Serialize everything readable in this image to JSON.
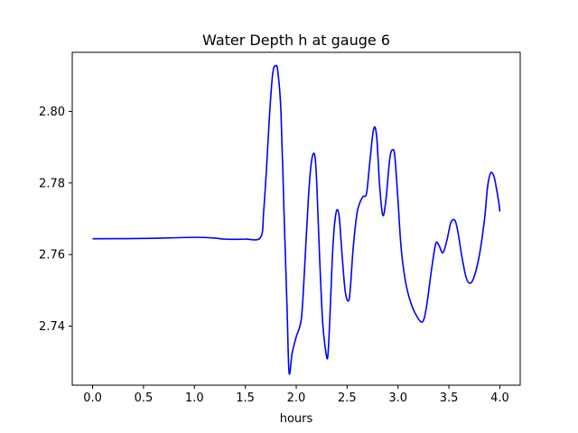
{
  "chart_data": {
    "type": "line",
    "title": "Water Depth h at gauge 6",
    "xlabel": "hours",
    "ylabel": "",
    "xlim": [
      -0.2,
      4.2
    ],
    "ylim": [
      2.7235,
      2.8165
    ],
    "xticks": [
      0.0,
      0.5,
      1.0,
      1.5,
      2.0,
      2.5,
      3.0,
      3.5,
      4.0
    ],
    "xtick_labels": [
      "0.0",
      "0.5",
      "1.0",
      "1.5",
      "2.0",
      "2.5",
      "3.0",
      "3.5",
      "4.0"
    ],
    "yticks": [
      2.74,
      2.76,
      2.78,
      2.8
    ],
    "ytick_labels": [
      "2.74",
      "2.76",
      "2.78",
      "2.80"
    ],
    "grid": false,
    "series": [
      {
        "color": "#0000ff",
        "x": [
          0.0,
          0.5,
          1.0,
          1.2,
          1.3,
          1.5,
          1.65,
          1.68,
          1.71,
          1.74,
          1.77,
          1.8,
          1.82,
          1.85,
          1.88,
          1.91,
          1.93,
          1.96,
          2.0,
          2.05,
          2.08,
          2.12,
          2.15,
          2.18,
          2.2,
          2.23,
          2.26,
          2.29,
          2.31,
          2.33,
          2.36,
          2.39,
          2.42,
          2.45,
          2.48,
          2.51,
          2.53,
          2.56,
          2.6,
          2.65,
          2.69,
          2.72,
          2.76,
          2.79,
          2.82,
          2.85,
          2.88,
          2.92,
          2.95,
          2.97,
          3.0,
          3.03,
          3.07,
          3.12,
          3.18,
          3.24,
          3.28,
          3.33,
          3.37,
          3.4,
          3.44,
          3.48,
          3.52,
          3.56,
          3.59,
          3.63,
          3.67,
          3.71,
          3.75,
          3.8,
          3.85,
          3.88,
          3.91,
          3.94,
          3.96,
          3.99,
          4.0
        ],
        "y": [
          2.7644,
          2.7645,
          2.7648,
          2.7646,
          2.7643,
          2.7643,
          2.7648,
          2.772,
          2.785,
          2.8,
          2.8108,
          2.8128,
          2.811,
          2.8,
          2.772,
          2.745,
          2.727,
          2.7325,
          2.737,
          2.742,
          2.755,
          2.776,
          2.786,
          2.788,
          2.781,
          2.759,
          2.741,
          2.733,
          2.7315,
          2.742,
          2.762,
          2.7715,
          2.771,
          2.76,
          2.75,
          2.747,
          2.75,
          2.762,
          2.772,
          2.776,
          2.777,
          2.785,
          2.795,
          2.793,
          2.779,
          2.771,
          2.775,
          2.787,
          2.7893,
          2.787,
          2.775,
          2.762,
          2.753,
          2.747,
          2.743,
          2.7412,
          2.7455,
          2.756,
          2.763,
          2.7627,
          2.7605,
          2.764,
          2.769,
          2.7695,
          2.766,
          2.759,
          2.7535,
          2.752,
          2.754,
          2.76,
          2.77,
          2.779,
          2.7828,
          2.782,
          2.7795,
          2.7745,
          2.772
        ]
      }
    ]
  }
}
